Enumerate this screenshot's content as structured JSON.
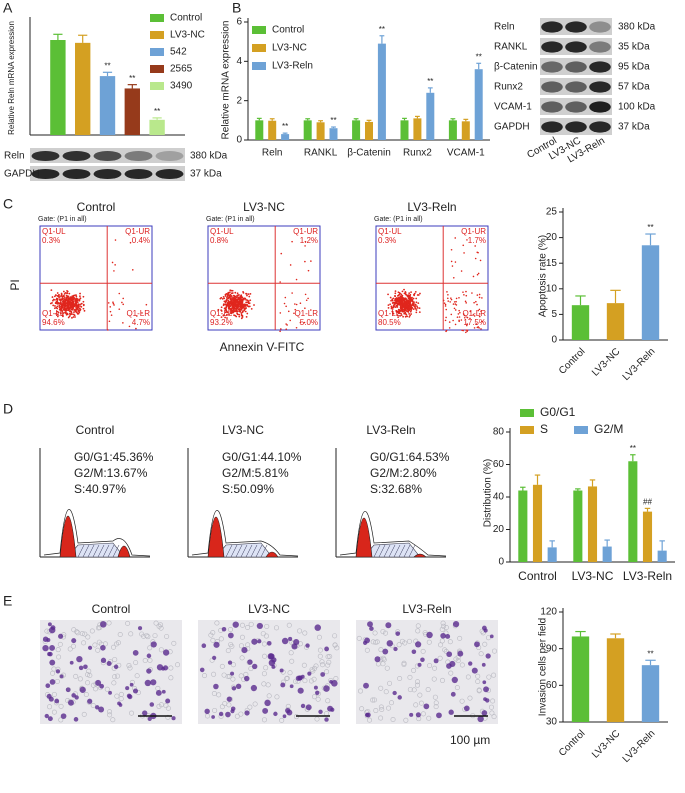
{
  "panels": [
    "A",
    "B",
    "C",
    "D",
    "E"
  ],
  "chart_data": [
    {
      "type": "bar",
      "y_label": "Relative Reln mRNA expression",
      "ylim": [
        0,
        1.2
      ],
      "series": [
        {
          "name": "Control",
          "color": "#5bbf36",
          "values": [
            1.0
          ],
          "errors": [
            0.06
          ],
          "marks": [
            null
          ]
        },
        {
          "name": "LV3-NC",
          "color": "#d4a022",
          "values": [
            0.97
          ],
          "errors": [
            0.08
          ],
          "marks": [
            null
          ]
        },
        {
          "name": "542",
          "color": "#6ea2d6",
          "values": [
            0.62
          ],
          "errors": [
            0.04
          ],
          "marks": [
            "**"
          ]
        },
        {
          "name": "2565",
          "color": "#963a1b",
          "values": [
            0.49
          ],
          "errors": [
            0.04
          ],
          "marks": [
            "**"
          ]
        },
        {
          "name": "3490",
          "color": "#b9e88c",
          "values": [
            0.16
          ],
          "errors": [
            0.02
          ],
          "marks": [
            "**"
          ]
        }
      ]
    },
    {
      "type": "bar",
      "y_label": "Relative mRNA expression",
      "ylim": [
        0,
        6
      ],
      "yticks": [
        0,
        2,
        4,
        6
      ],
      "categories": [
        "Reln",
        "RANKL",
        "β-Catenin",
        "Runx2",
        "VCAM-1"
      ],
      "series": [
        {
          "name": "Control",
          "color": "#5bbf36",
          "values": [
            1.0,
            1.0,
            1.0,
            1.0,
            1.0
          ],
          "errors": [
            0.1,
            0.08,
            0.08,
            0.1,
            0.08
          ],
          "marks": [
            null,
            null,
            null,
            null,
            null
          ]
        },
        {
          "name": "LV3-NC",
          "color": "#d4a022",
          "values": [
            0.98,
            0.9,
            0.92,
            1.1,
            0.95
          ],
          "errors": [
            0.1,
            0.08,
            0.08,
            0.1,
            0.1
          ],
          "marks": [
            null,
            null,
            null,
            null,
            null
          ]
        },
        {
          "name": "LV3-Reln",
          "color": "#6ea2d6",
          "values": [
            0.3,
            0.6,
            4.9,
            2.4,
            3.6
          ],
          "errors": [
            0.05,
            0.06,
            0.4,
            0.25,
            0.3
          ],
          "marks": [
            "**",
            "**",
            "**",
            "**",
            "**"
          ]
        }
      ]
    },
    {
      "type": "bar",
      "y_label": "Apoptosis rate (%)",
      "ylim": [
        0,
        25
      ],
      "yticks": [
        0,
        5,
        10,
        15,
        20,
        25
      ],
      "categories": [
        "Control",
        "LV3-NC",
        "LV3-Reln"
      ],
      "values": [
        6.8,
        7.2,
        18.5
      ],
      "errors": [
        1.8,
        2.5,
        2.2
      ],
      "colors": [
        "#5bbf36",
        "#d4a022",
        "#6ea2d6"
      ],
      "marks": [
        null,
        null,
        "**"
      ]
    },
    {
      "type": "bar",
      "y_label": "Distribution (%)",
      "ylim": [
        0,
        80
      ],
      "yticks": [
        0,
        20,
        40,
        60,
        80
      ],
      "categories": [
        "Control",
        "LV3-NC",
        "LV3-Reln"
      ],
      "series": [
        {
          "name": "G0/G1",
          "color": "#5bbf36",
          "values": [
            44,
            44,
            62
          ],
          "errors": [
            2,
            1,
            4
          ],
          "marks": [
            null,
            null,
            "**"
          ]
        },
        {
          "name": "S",
          "color": "#d4a022",
          "values": [
            47.5,
            46.5,
            31
          ],
          "errors": [
            6,
            4,
            2
          ],
          "marks": [
            null,
            null,
            "##"
          ]
        },
        {
          "name": "G2/M",
          "color": "#6ea2d6",
          "values": [
            9,
            9.5,
            7
          ],
          "errors": [
            4,
            4,
            6
          ],
          "marks": [
            null,
            null,
            null
          ]
        }
      ]
    },
    {
      "type": "bar",
      "y_label": "Invasion cells per field",
      "ylim": [
        30,
        120
      ],
      "yticks": [
        30,
        60,
        90,
        120
      ],
      "categories": [
        "Control",
        "LV3-NC",
        "LV3-Reln"
      ],
      "values": [
        100,
        98.5,
        76.5
      ],
      "errors": [
        4,
        3.5,
        4
      ],
      "colors": [
        "#5bbf36",
        "#d4a022",
        "#6ea2d6"
      ],
      "marks": [
        null,
        null,
        "**"
      ]
    }
  ],
  "blots": [
    {
      "rows": [
        {
          "protein": "Reln",
          "size": "380 kDa"
        },
        {
          "protein": "GAPDH",
          "size": "37 kDa"
        }
      ]
    },
    {
      "rows": [
        {
          "protein": "Reln",
          "size": "380 kDa"
        },
        {
          "protein": "RANKL",
          "size": "35 kDa"
        },
        {
          "protein": "β-Catenin",
          "size": "95 kDa"
        },
        {
          "protein": "Runx2",
          "size": "57 kDa"
        },
        {
          "protein": "VCAM-1",
          "size": "100 kDa"
        },
        {
          "protein": "GAPDH",
          "size": "37 kDa"
        }
      ],
      "lanes": [
        "Control",
        "LV3-NC",
        "LV3-Reln"
      ]
    }
  ],
  "flow": {
    "y_label": "PI",
    "x_label": "Annexin V-FITC",
    "plots": [
      {
        "title": "Control",
        "gate": "Gate: (P1 in all)",
        "quadrants": [
          {
            "name": "Q1-UL",
            "value": "0.3%"
          },
          {
            "name": "Q1-UR",
            "value": "0.4%"
          },
          {
            "name": "Q1-LL",
            "value": "94.6%"
          },
          {
            "name": "Q1-LR",
            "value": "4.7%"
          }
        ]
      },
      {
        "title": "LV3-NC",
        "gate": "Gate: (P1 in all)",
        "quadrants": [
          {
            "name": "Q1-UL",
            "value": "0.8%"
          },
          {
            "name": "Q1-UR",
            "value": "1.2%"
          },
          {
            "name": "Q1-LL",
            "value": "93.2%"
          },
          {
            "name": "Q1-LR",
            "value": "5.0%"
          }
        ]
      },
      {
        "title": "LV3-Reln",
        "gate": "Gate: (P1 in all)",
        "quadrants": [
          {
            "name": "Q1-UL",
            "value": "0.3%"
          },
          {
            "name": "Q1-UR",
            "value": "1.7%"
          },
          {
            "name": "Q1-LL",
            "value": "80.5%"
          },
          {
            "name": "Q1-LR",
            "value": "17.5%"
          }
        ]
      }
    ]
  },
  "cell_cycle": {
    "plots": [
      {
        "title": "Control",
        "stats": [
          "G0/G1:45.36%",
          "G2/M:13.67%",
          "S:40.97%"
        ]
      },
      {
        "title": "LV3-NC",
        "stats": [
          "G0/G1:44.10%",
          "G2/M:5.81%",
          "S:50.09%"
        ]
      },
      {
        "title": "LV3-Reln",
        "stats": [
          "G0/G1:64.53%",
          "G2/M:2.80%",
          "S:32.68%"
        ]
      }
    ]
  },
  "invasion": {
    "images": [
      "Control",
      "LV3-NC",
      "LV3-Reln"
    ],
    "scale_bar": "100 µm"
  }
}
